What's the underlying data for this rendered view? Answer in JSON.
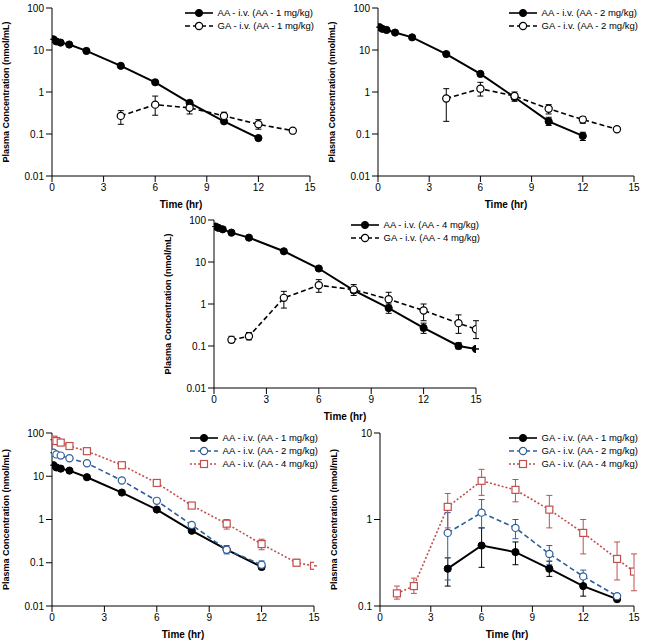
{
  "chart_data": [
    {
      "type": "line",
      "log": "y",
      "grid": false,
      "legend": "top-right",
      "x_label": "Time (hr)",
      "y_label": "Plasma Concentration (nmol/mL)",
      "xlim": [
        0,
        15
      ],
      "xticks": [
        0,
        3,
        6,
        9,
        12,
        15
      ],
      "ylim": [
        0.01,
        100
      ],
      "yticks": [
        0.01,
        0.1,
        1,
        10,
        100
      ],
      "series": [
        {
          "name": "AA - i.v. (AA - 1 mg/kg)",
          "color": "#000000",
          "marker": "circle",
          "line_style": "solid",
          "x": [
            0.083,
            0.25,
            0.5,
            1,
            2,
            4,
            6,
            8,
            10,
            12
          ],
          "values": [
            18,
            16,
            15,
            13.5,
            9.5,
            4.2,
            1.7,
            0.55,
            0.2,
            0.08
          ],
          "errors": [
            null,
            null,
            null,
            null,
            null,
            null,
            null,
            null,
            null,
            null
          ]
        },
        {
          "name": "GA - i.v. (AA - 1 mg/kg)",
          "color": "#000000",
          "marker": "open_circle",
          "line_style": "dashed",
          "x": [
            4,
            6,
            8,
            10,
            12,
            14
          ],
          "values": [
            0.27,
            0.5,
            0.42,
            0.27,
            0.17,
            0.12
          ],
          "errors": [
            [
              0.17,
              0.36
            ],
            [
              0.28,
              0.8
            ],
            [
              0.3,
              0.55
            ],
            [
              0.22,
              0.33
            ],
            [
              0.13,
              0.22
            ],
            null
          ]
        }
      ]
    },
    {
      "type": "line",
      "log": "y",
      "grid": false,
      "legend": "top-right",
      "x_label": "Time (hr)",
      "y_label": "Plasma Concentration (nmol/mL)",
      "xlim": [
        0,
        15
      ],
      "xticks": [
        0,
        3,
        6,
        9,
        12,
        15
      ],
      "ylim": [
        0.01,
        100
      ],
      "yticks": [
        0.01,
        0.1,
        1,
        10,
        100
      ],
      "series": [
        {
          "name": "AA - i.v. (AA - 2 mg/kg)",
          "color": "#000000",
          "marker": "circle",
          "line_style": "solid",
          "x": [
            0.083,
            0.25,
            0.5,
            1,
            2,
            4,
            6,
            8,
            10,
            12
          ],
          "values": [
            35,
            32,
            30,
            26,
            20,
            8,
            2.7,
            0.75,
            0.2,
            0.09
          ],
          "errors": [
            null,
            null,
            null,
            null,
            null,
            null,
            null,
            null,
            [
              0.16,
              0.25
            ],
            [
              0.07,
              0.11
            ]
          ]
        },
        {
          "name": "GA - i.v. (AA - 2 mg/kg)",
          "color": "#000000",
          "marker": "open_circle",
          "line_style": "dashed",
          "x": [
            4,
            6,
            8,
            10,
            12,
            14
          ],
          "values": [
            0.7,
            1.2,
            0.8,
            0.4,
            0.22,
            0.13
          ],
          "errors": [
            [
              0.2,
              1.2
            ],
            [
              0.8,
              1.7
            ],
            [
              0.6,
              1.0
            ],
            [
              0.3,
              0.5
            ],
            [
              0.18,
              0.26
            ],
            null
          ]
        }
      ]
    },
    {
      "type": "line",
      "log": "y",
      "grid": false,
      "legend": "top-right",
      "x_label": "Time (hr)",
      "y_label": "Plasma Concentration (nmol/mL)",
      "xlim": [
        0,
        15
      ],
      "xticks": [
        0,
        3,
        6,
        9,
        12,
        15
      ],
      "ylim": [
        0.01,
        100
      ],
      "yticks": [
        0.01,
        0.1,
        1,
        10,
        100
      ],
      "series": [
        {
          "name": "AA - i.v. (AA - 4 mg/kg)",
          "color": "#000000",
          "marker": "circle",
          "line_style": "solid",
          "x": [
            0.083,
            0.25,
            0.5,
            1,
            2,
            4,
            6,
            8,
            10,
            12,
            14,
            15
          ],
          "values": [
            70,
            65,
            60,
            50,
            38,
            18,
            7,
            2.1,
            0.8,
            0.27,
            0.1,
            0.085
          ],
          "errors": [
            null,
            null,
            null,
            null,
            null,
            null,
            null,
            null,
            [
              0.6,
              1.0
            ],
            [
              0.2,
              0.35
            ],
            [
              0.085,
              0.12
            ],
            null
          ]
        },
        {
          "name": "GA - i.v. (AA - 4 mg/kg)",
          "color": "#000000",
          "marker": "open_circle",
          "line_style": "dashed",
          "x": [
            1,
            2,
            4,
            6,
            8,
            10,
            12,
            14,
            15
          ],
          "values": [
            0.14,
            0.17,
            1.4,
            2.8,
            2.2,
            1.3,
            0.7,
            0.35,
            0.25
          ],
          "errors": [
            [
              0.12,
              0.17
            ],
            [
              0.14,
              0.21
            ],
            [
              0.8,
              2.0
            ],
            [
              1.9,
              3.8
            ],
            [
              1.6,
              2.9
            ],
            [
              0.8,
              1.9
            ],
            [
              0.4,
              1.0
            ],
            [
              0.2,
              0.55
            ],
            [
              0.15,
              0.4
            ]
          ]
        }
      ]
    },
    {
      "type": "line",
      "log": "y",
      "grid": false,
      "legend": "top-right",
      "x_label": "Time (hr)",
      "y_label": "Plasma Concentration (nmol/mL)",
      "xlim": [
        0,
        15
      ],
      "xticks": [
        0,
        3,
        6,
        9,
        12,
        15
      ],
      "ylim": [
        0.01,
        100
      ],
      "yticks": [
        0.01,
        0.1,
        1,
        10,
        100
      ],
      "series": [
        {
          "name": "AA - i.v. (AA - 1 mg/kg)",
          "color": "#000000",
          "marker": "circle",
          "line_style": "solid",
          "x": [
            0.083,
            0.25,
            0.5,
            1,
            2,
            4,
            6,
            8,
            10,
            12
          ],
          "values": [
            18,
            16,
            15,
            13.5,
            9.5,
            4.2,
            1.7,
            0.55,
            0.2,
            0.08
          ],
          "errors": [
            null,
            null,
            null,
            null,
            null,
            null,
            null,
            null,
            null,
            null
          ]
        },
        {
          "name": "AA - i.v. (AA - 2 mg/kg)",
          "color": "#2f5f9a",
          "marker": "open_circle",
          "line_style": "dashed",
          "x": [
            0.083,
            0.25,
            0.5,
            1,
            2,
            4,
            6,
            8,
            10,
            12
          ],
          "values": [
            35,
            32,
            30,
            26,
            20,
            8,
            2.7,
            0.75,
            0.2,
            0.09
          ],
          "errors": [
            null,
            null,
            null,
            null,
            null,
            null,
            null,
            null,
            [
              0.16,
              0.25
            ],
            [
              0.07,
              0.11
            ]
          ]
        },
        {
          "name": "AA - i.v. (AA - 4 mg/kg)",
          "color": "#c0504d",
          "marker": "open_square",
          "line_style": "dotted",
          "x": [
            0.083,
            0.25,
            0.5,
            1,
            2,
            4,
            6,
            8,
            10,
            12,
            14,
            15
          ],
          "values": [
            70,
            65,
            60,
            50,
            38,
            18,
            7,
            2.1,
            0.8,
            0.27,
            0.1,
            0.085
          ],
          "errors": [
            null,
            null,
            null,
            null,
            null,
            null,
            null,
            null,
            [
              0.6,
              1.0
            ],
            [
              0.2,
              0.35
            ],
            [
              0.085,
              0.12
            ],
            null
          ]
        }
      ]
    },
    {
      "type": "line",
      "log": "y",
      "grid": false,
      "legend": "top-right",
      "x_label": "Time (hr)",
      "y_label": "Plasma Concentration (nmol/mL)",
      "xlim": [
        0,
        15
      ],
      "xticks": [
        0,
        3,
        6,
        9,
        12,
        15
      ],
      "ylim": [
        0.1,
        10
      ],
      "yticks": [
        0.1,
        1,
        10
      ],
      "series": [
        {
          "name": "GA - i.v. (AA - 1 mg/kg)",
          "color": "#000000",
          "marker": "circle",
          "line_style": "solid",
          "x": [
            4,
            6,
            8,
            10,
            12,
            14
          ],
          "values": [
            0.27,
            0.5,
            0.42,
            0.27,
            0.17,
            0.12
          ],
          "errors": [
            [
              0.17,
              0.36
            ],
            [
              0.28,
              0.8
            ],
            [
              0.3,
              0.55
            ],
            [
              0.22,
              0.33
            ],
            [
              0.13,
              0.22
            ],
            null
          ]
        },
        {
          "name": "GA - i.v. (AA - 2 mg/kg)",
          "color": "#2f5f9a",
          "marker": "open_circle",
          "line_style": "dashed",
          "x": [
            4,
            6,
            8,
            10,
            12,
            14
          ],
          "values": [
            0.7,
            1.2,
            0.8,
            0.4,
            0.22,
            0.13
          ],
          "errors": [
            [
              0.2,
              1.2
            ],
            [
              0.8,
              1.7
            ],
            [
              0.6,
              1.0
            ],
            [
              0.3,
              0.5
            ],
            [
              0.18,
              0.26
            ],
            null
          ]
        },
        {
          "name": "GA - i.v. (AA - 4 mg/kg)",
          "color": "#c0504d",
          "marker": "open_square",
          "line_style": "dotted",
          "x": [
            1,
            2,
            4,
            6,
            8,
            10,
            12,
            14,
            15
          ],
          "values": [
            0.14,
            0.17,
            1.4,
            2.8,
            2.2,
            1.3,
            0.7,
            0.35,
            0.25
          ],
          "errors": [
            [
              0.12,
              0.17
            ],
            [
              0.14,
              0.21
            ],
            [
              0.8,
              2.0
            ],
            [
              1.9,
              3.8
            ],
            [
              1.6,
              2.9
            ],
            [
              0.8,
              1.9
            ],
            [
              0.4,
              1.0
            ],
            [
              0.2,
              0.55
            ],
            [
              0.15,
              0.4
            ]
          ]
        }
      ]
    }
  ]
}
